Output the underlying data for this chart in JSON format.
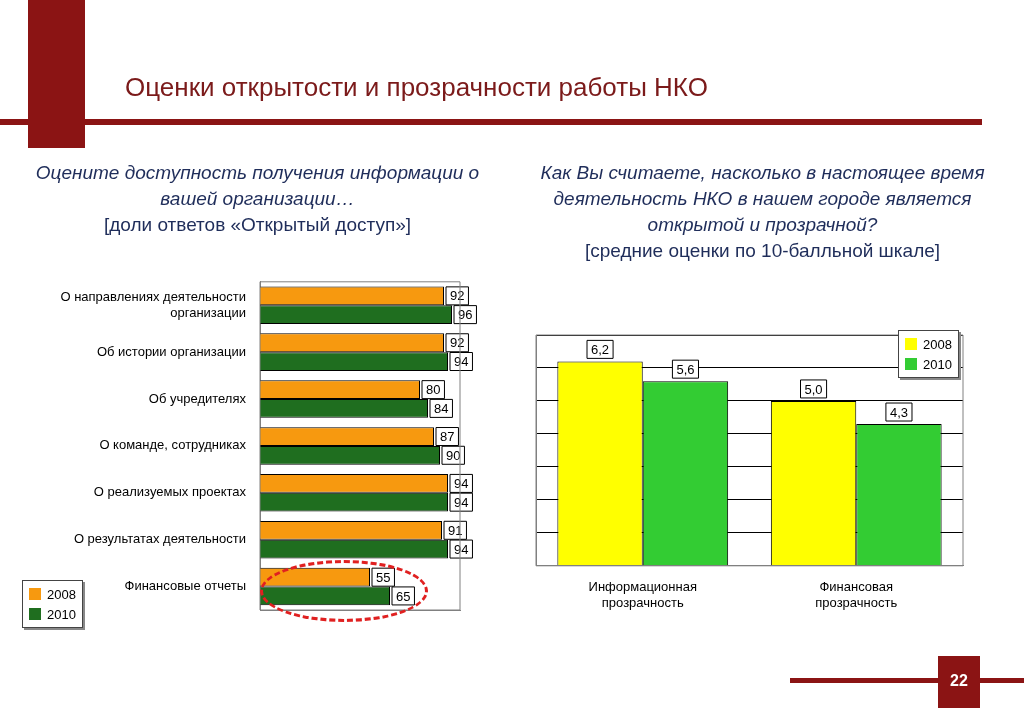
{
  "chart_data": [
    {
      "type": "bar",
      "orientation": "horizontal",
      "title": "Оцените доступность получения информации о вашей организации…",
      "subtitle": "[доли ответов «Открытый доступ»]",
      "categories": [
        "О направлениях деятельности организации",
        "Об истории организации",
        "Об учредителях",
        "О команде, сотрудниках",
        "О реализуемых проектах",
        "О результатах деятельности",
        "Финансовые отчеты"
      ],
      "series": [
        {
          "name": "2008",
          "color": "#f7990f",
          "values": [
            92,
            92,
            80,
            87,
            94,
            91,
            55
          ]
        },
        {
          "name": "2010",
          "color": "#1f6e1f",
          "values": [
            96,
            94,
            84,
            90,
            94,
            94,
            65
          ]
        }
      ],
      "tick_labels": "y",
      "legend": "bottom left",
      "data_labels": true,
      "annotations": [
        "Оценки открытости и прозрачности работы НКО"
      ]
    },
    {
      "type": "bar",
      "title": "Как Вы считаете, насколько в настоящее время деятельность НКО в нашем городе является открытой и прозрачной?",
      "subtitle": "[средние оценки по 10-балльной шкале]",
      "categories": [
        "Информационная прозрачность",
        "Финансовая прозрачность"
      ],
      "series": [
        {
          "name": "2008",
          "color": "#ffff00",
          "values": [
            6.2,
            5.0
          ],
          "value_labels": [
            "6,2",
            "5,0"
          ]
        },
        {
          "name": "2010",
          "color": "#33cc33",
          "values": [
            5.6,
            4.3
          ],
          "value_labels": [
            "5,6",
            "4,3"
          ]
        }
      ],
      "ylim": [
        0,
        7
      ],
      "yticks": [
        {
          "value": 0,
          "label": null
        },
        {
          "value": 1,
          "label": null
        },
        {
          "value": 2,
          "label": null
        },
        {
          "value": 3,
          "label": null
        },
        {
          "value": 4,
          "label": null
        },
        {
          "value": 5,
          "label": null
        },
        {
          "value": 6,
          "label": null
        },
        {
          "value": 7,
          "label": null
        }
      ],
      "grid": "y",
      "tick_labels": "x",
      "legend": "top right",
      "annotations": [
        "22"
      ]
    }
  ]
}
